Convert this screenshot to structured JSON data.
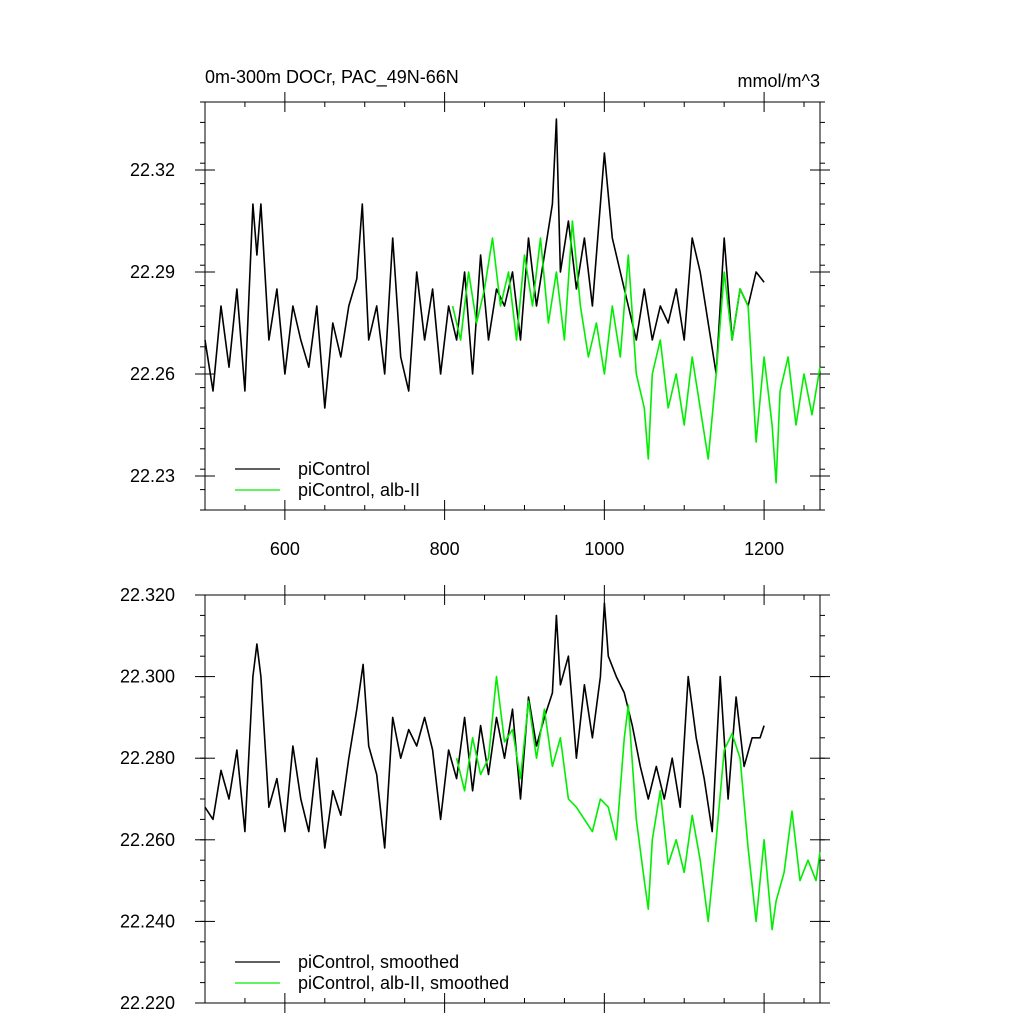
{
  "chart_data": [
    {
      "type": "line",
      "title": "0m-300m DOCr, PAC_49N-66N",
      "units": "mmol/m^3",
      "xlabel": "",
      "ylabel": "",
      "xlim": [
        500,
        1270
      ],
      "ylim": [
        22.22,
        22.34
      ],
      "xticks": [
        600,
        800,
        1000,
        1200
      ],
      "xtick_labels": [
        "600",
        "800",
        "1000",
        "1200"
      ],
      "yticks": [
        22.23,
        22.26,
        22.29,
        22.32
      ],
      "ytick_labels": [
        "22.23",
        "22.26",
        "22.29",
        "22.32"
      ],
      "legend_position": "bottom-left",
      "series": [
        {
          "name": "piControl",
          "color": "#000000",
          "x": [
            500,
            510,
            520,
            530,
            540,
            550,
            560,
            565,
            570,
            580,
            590,
            600,
            610,
            620,
            630,
            640,
            650,
            660,
            670,
            680,
            690,
            697,
            705,
            715,
            725,
            735,
            745,
            755,
            765,
            775,
            785,
            795,
            805,
            815,
            825,
            835,
            845,
            855,
            865,
            875,
            885,
            895,
            905,
            915,
            925,
            935,
            940,
            945,
            955,
            965,
            975,
            985,
            995,
            1000,
            1010,
            1020,
            1030,
            1040,
            1050,
            1060,
            1070,
            1080,
            1090,
            1100,
            1110,
            1120,
            1130,
            1140,
            1150,
            1160,
            1170,
            1180,
            1190,
            1200
          ],
          "values": [
            22.27,
            22.255,
            22.28,
            22.262,
            22.285,
            22.255,
            22.31,
            22.295,
            22.31,
            22.27,
            22.285,
            22.26,
            22.28,
            22.27,
            22.262,
            22.28,
            22.25,
            22.275,
            22.265,
            22.28,
            22.288,
            22.31,
            22.27,
            22.28,
            22.26,
            22.3,
            22.265,
            22.255,
            22.29,
            22.27,
            22.285,
            22.26,
            22.28,
            22.27,
            22.29,
            22.26,
            22.295,
            22.27,
            22.285,
            22.28,
            22.29,
            22.27,
            22.3,
            22.28,
            22.295,
            22.31,
            22.335,
            22.29,
            22.305,
            22.285,
            22.3,
            22.28,
            22.31,
            22.325,
            22.3,
            22.29,
            22.28,
            22.27,
            22.285,
            22.27,
            22.28,
            22.275,
            22.285,
            22.27,
            22.3,
            22.29,
            22.275,
            22.26,
            22.3,
            22.27,
            22.285,
            22.28,
            22.29,
            22.287
          ]
        },
        {
          "name": "piControl, alb-II",
          "color": "#00ee00",
          "x": [
            810,
            820,
            830,
            840,
            850,
            860,
            870,
            880,
            890,
            900,
            910,
            920,
            930,
            940,
            950,
            960,
            970,
            980,
            990,
            1000,
            1010,
            1020,
            1030,
            1040,
            1050,
            1055,
            1060,
            1070,
            1080,
            1090,
            1100,
            1110,
            1120,
            1130,
            1140,
            1150,
            1160,
            1170,
            1180,
            1190,
            1200,
            1210,
            1215,
            1220,
            1230,
            1240,
            1250,
            1260,
            1270
          ],
          "values": [
            22.28,
            22.27,
            22.29,
            22.275,
            22.285,
            22.3,
            22.28,
            22.29,
            22.27,
            22.295,
            22.28,
            22.3,
            22.275,
            22.29,
            22.27,
            22.305,
            22.28,
            22.265,
            22.275,
            22.26,
            22.28,
            22.265,
            22.295,
            22.26,
            22.25,
            22.235,
            22.26,
            22.27,
            22.25,
            22.26,
            22.245,
            22.265,
            22.25,
            22.235,
            22.26,
            22.29,
            22.27,
            22.285,
            22.28,
            22.24,
            22.265,
            22.245,
            22.228,
            22.255,
            22.265,
            22.245,
            22.26,
            22.248,
            22.262
          ]
        }
      ]
    },
    {
      "type": "line",
      "title": "",
      "xlabel": "",
      "ylabel": "",
      "xlim": [
        500,
        1270
      ],
      "ylim": [
        22.22,
        22.32
      ],
      "xticks": [
        600,
        800,
        1000,
        1200
      ],
      "yticks": [
        22.22,
        22.24,
        22.26,
        22.28,
        22.3,
        22.32
      ],
      "ytick_labels": [
        "22.220",
        "22.240",
        "22.260",
        "22.280",
        "22.300",
        "22.320"
      ],
      "legend_position": "bottom-left",
      "series": [
        {
          "name": "piControl, smoothed",
          "color": "#000000",
          "x": [
            500,
            510,
            520,
            530,
            540,
            550,
            560,
            565,
            570,
            580,
            590,
            600,
            610,
            620,
            630,
            640,
            650,
            660,
            670,
            680,
            690,
            698,
            705,
            715,
            725,
            735,
            745,
            755,
            765,
            775,
            785,
            795,
            805,
            815,
            825,
            835,
            845,
            855,
            865,
            875,
            885,
            895,
            905,
            915,
            925,
            935,
            940,
            945,
            955,
            965,
            975,
            985,
            995,
            1000,
            1005,
            1015,
            1025,
            1035,
            1045,
            1055,
            1065,
            1075,
            1085,
            1095,
            1105,
            1115,
            1125,
            1135,
            1145,
            1155,
            1165,
            1175,
            1185,
            1195,
            1200
          ],
          "values": [
            22.268,
            22.265,
            22.277,
            22.27,
            22.282,
            22.262,
            22.3,
            22.308,
            22.3,
            22.268,
            22.275,
            22.262,
            22.283,
            22.27,
            22.262,
            22.28,
            22.258,
            22.272,
            22.266,
            22.28,
            22.292,
            22.303,
            22.283,
            22.276,
            22.258,
            22.29,
            22.28,
            22.287,
            22.283,
            22.29,
            22.282,
            22.265,
            22.282,
            22.275,
            22.29,
            22.272,
            22.288,
            22.276,
            22.29,
            22.28,
            22.292,
            22.27,
            22.295,
            22.283,
            22.29,
            22.296,
            22.315,
            22.298,
            22.305,
            22.28,
            22.298,
            22.285,
            22.3,
            22.318,
            22.305,
            22.3,
            22.296,
            22.288,
            22.278,
            22.27,
            22.278,
            22.27,
            22.28,
            22.268,
            22.3,
            22.285,
            22.275,
            22.262,
            22.3,
            22.27,
            22.295,
            22.278,
            22.285,
            22.285,
            22.288
          ]
        },
        {
          "name": "piControl, alb-II, smoothed",
          "color": "#00ee00",
          "x": [
            815,
            825,
            835,
            845,
            855,
            865,
            875,
            885,
            895,
            905,
            915,
            925,
            935,
            945,
            955,
            965,
            975,
            985,
            995,
            1005,
            1015,
            1025,
            1030,
            1040,
            1050,
            1055,
            1060,
            1070,
            1080,
            1090,
            1100,
            1110,
            1120,
            1130,
            1140,
            1150,
            1160,
            1170,
            1180,
            1190,
            1200,
            1210,
            1215,
            1225,
            1235,
            1245,
            1255,
            1265,
            1270
          ],
          "values": [
            22.28,
            22.272,
            22.285,
            22.276,
            22.28,
            22.3,
            22.284,
            22.287,
            22.275,
            22.294,
            22.28,
            22.292,
            22.278,
            22.285,
            22.27,
            22.268,
            22.265,
            22.262,
            22.27,
            22.268,
            22.26,
            22.285,
            22.293,
            22.265,
            22.25,
            22.243,
            22.26,
            22.272,
            22.254,
            22.26,
            22.252,
            22.266,
            22.255,
            22.24,
            22.26,
            22.282,
            22.286,
            22.28,
            22.258,
            22.24,
            22.26,
            22.238,
            22.245,
            22.252,
            22.267,
            22.25,
            22.255,
            22.25,
            22.257
          ]
        }
      ]
    }
  ]
}
